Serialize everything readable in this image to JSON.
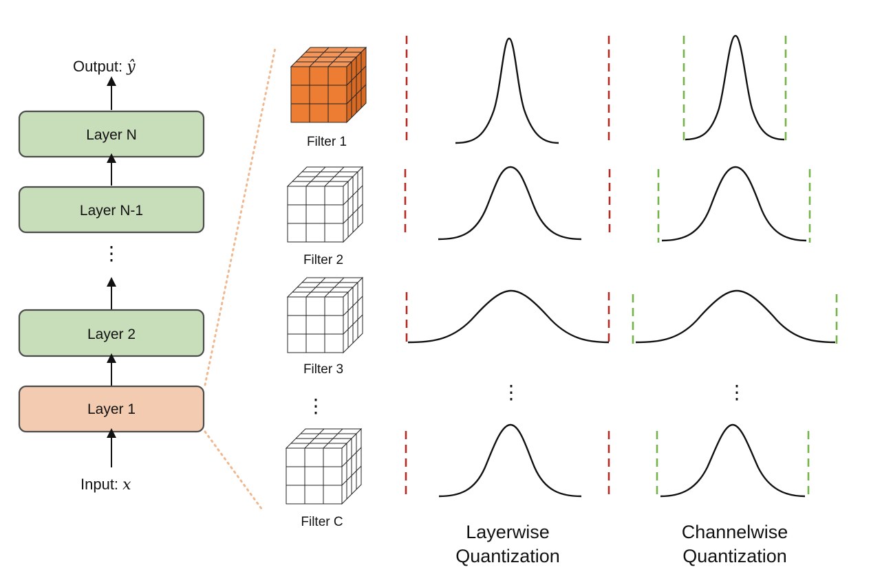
{
  "colors": {
    "layer_green": "#c8ddb9",
    "layer_orange": "#f2cbb0",
    "filter_active": "#ec7d32",
    "layerwise_bound": "#b22a22",
    "channelwise_bound": "#74b24a",
    "zoom_line": "#f0b88e"
  },
  "network": {
    "output_label": "Output: ",
    "output_var": "ŷ",
    "input_label": "Input: ",
    "input_var": "x",
    "ellipsis": "⋮",
    "layers": [
      {
        "label": "Layer N"
      },
      {
        "label": "Layer N-1"
      },
      {
        "label": "Layer 2"
      },
      {
        "label": "Layer 1"
      }
    ]
  },
  "filters": [
    {
      "label": "Filter  1",
      "highlighted": true
    },
    {
      "label": "Filter  2",
      "highlighted": false
    },
    {
      "label": "Filter  3",
      "highlighted": false
    },
    {
      "label": "Filter  C",
      "highlighted": false
    }
  ],
  "filter_ellipsis": "⋮",
  "layerwise": {
    "title_line1": "Layerwise",
    "title_line2": "Quantization",
    "ellipsis": "⋮"
  },
  "channelwise": {
    "title_line1": "Channelwise",
    "title_line2": "Quantization",
    "ellipsis": "⋮"
  }
}
